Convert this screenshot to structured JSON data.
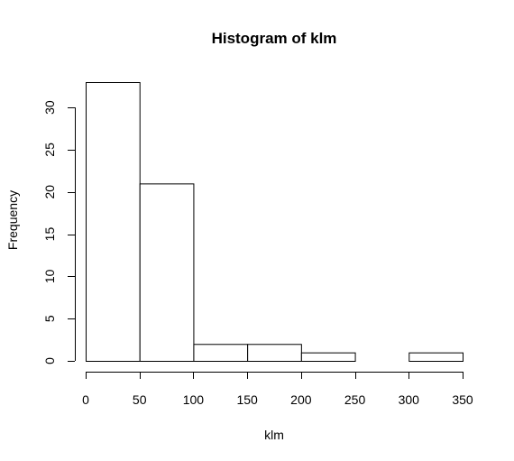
{
  "chart_data": {
    "type": "bar",
    "title": "Histogram of klm",
    "xlabel": "klm",
    "ylabel": "Frequency",
    "bins": [
      {
        "from": 0,
        "to": 50,
        "count": 33
      },
      {
        "from": 50,
        "to": 100,
        "count": 21
      },
      {
        "from": 100,
        "to": 150,
        "count": 2
      },
      {
        "from": 150,
        "to": 200,
        "count": 2
      },
      {
        "from": 200,
        "to": 250,
        "count": 1
      },
      {
        "from": 250,
        "to": 300,
        "count": 0
      },
      {
        "from": 300,
        "to": 350,
        "count": 1
      }
    ],
    "xlim": [
      0,
      350
    ],
    "ylim": [
      0,
      33
    ],
    "x_ticks": [
      0,
      50,
      100,
      150,
      200,
      250,
      300,
      350
    ],
    "y_ticks": [
      0,
      5,
      10,
      15,
      20,
      25,
      30
    ],
    "grid": false,
    "legend": "none"
  }
}
